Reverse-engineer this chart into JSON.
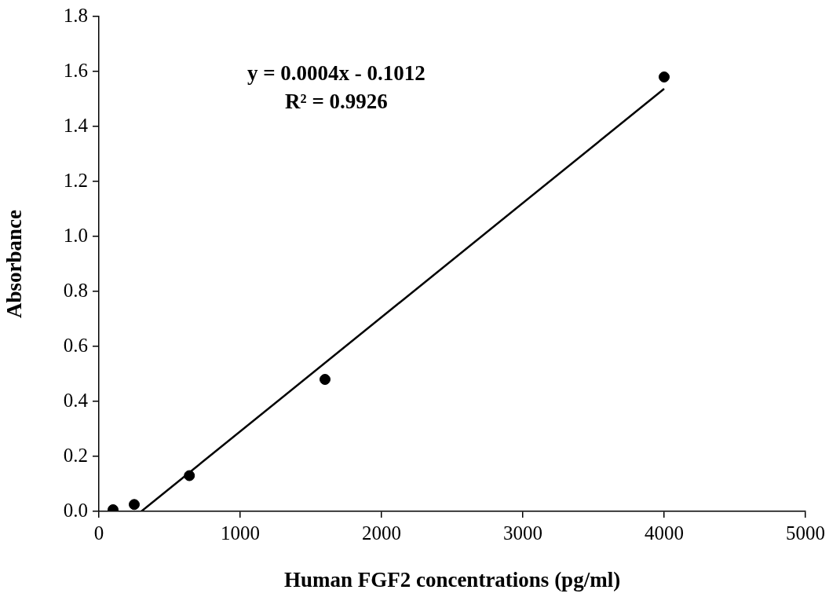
{
  "chart_data": {
    "type": "scatter",
    "xlabel": "Human FGF2 concentrations (pg/ml)",
    "ylabel": "Absorbance",
    "series": [
      {
        "type": "scatter",
        "color": "#000000",
        "marker": "circle",
        "x": [
          100,
          250,
          640,
          1600,
          4000
        ],
        "values": [
          0.006,
          0.025,
          0.13,
          0.48,
          1.58
        ]
      },
      {
        "type": "line",
        "color": "#000000",
        "marker": "none",
        "line_style": "solid",
        "x": [
          300,
          4000
        ],
        "values": [
          0,
          1.537
        ]
      }
    ],
    "annotations": [
      "y = 0.0004x - 0.1012",
      "R² = 0.9926"
    ],
    "xlim": [
      0,
      5000
    ],
    "xticks": [
      0,
      1000,
      2000,
      3000,
      4000,
      5000
    ],
    "ylim": [
      0,
      1.8
    ],
    "yticks": [
      {
        "value": 0,
        "label": "0.0"
      },
      {
        "value": 0.2,
        "label": "0.2"
      },
      {
        "value": 0.4,
        "label": "0.4"
      },
      {
        "value": 0.6,
        "label": "0.6"
      },
      {
        "value": 0.8,
        "label": "0.8"
      },
      {
        "value": 1,
        "label": "1.0"
      },
      {
        "value": 1.2,
        "label": "1.2"
      },
      {
        "value": 1.4,
        "label": "1.4"
      },
      {
        "value": 1.6,
        "label": "1.6"
      },
      {
        "value": 1.8,
        "label": "1.8"
      }
    ],
    "grid": false,
    "legend": false
  }
}
